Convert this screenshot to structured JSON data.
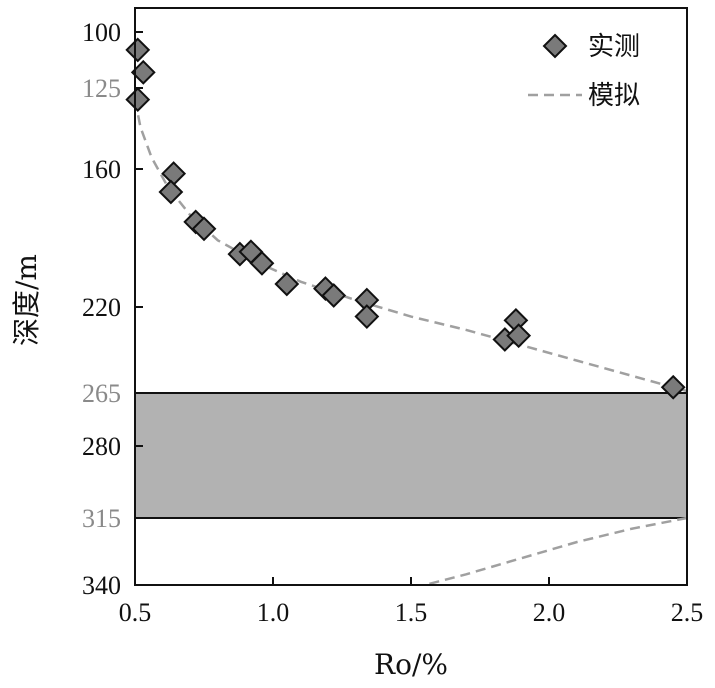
{
  "chart_data": {
    "type": "scatter",
    "xlabel": "Ro/%",
    "ylabel": "深度/m",
    "xlim": [
      0.5,
      2.5
    ],
    "x_ticks": [
      "0.5",
      "1.0",
      "1.5",
      "2.0",
      "2.5"
    ],
    "x_tick_values": [
      0.5,
      1.0,
      1.5,
      2.0,
      2.5
    ],
    "y_ticks": [
      "100",
      "125",
      "160",
      "220",
      "265",
      "280",
      "315",
      "340"
    ],
    "y_ticks_gray": [
      "125",
      "265",
      "315"
    ],
    "y_axis_inverted": true,
    "legend_position": "top-right",
    "shaded_band": {
      "from": "265",
      "to": "315",
      "color": "#b2b2b2"
    },
    "series": [
      {
        "name": "实测",
        "kind": "scatter",
        "marker": "diamond",
        "color": "#7a7a7a",
        "points": [
          {
            "x": 0.51,
            "y": 108
          },
          {
            "x": 0.53,
            "y": 118
          },
          {
            "x": 0.51,
            "y": 130
          },
          {
            "x": 0.64,
            "y": 162
          },
          {
            "x": 0.63,
            "y": 170
          },
          {
            "x": 0.72,
            "y": 183
          },
          {
            "x": 0.75,
            "y": 186
          },
          {
            "x": 0.88,
            "y": 197
          },
          {
            "x": 0.92,
            "y": 196
          },
          {
            "x": 0.96,
            "y": 201
          },
          {
            "x": 1.05,
            "y": 210
          },
          {
            "x": 1.19,
            "y": 212
          },
          {
            "x": 1.22,
            "y": 215
          },
          {
            "x": 1.34,
            "y": 217
          },
          {
            "x": 1.34,
            "y": 225
          },
          {
            "x": 1.84,
            "y": 237
          },
          {
            "x": 1.88,
            "y": 227
          },
          {
            "x": 1.89,
            "y": 235
          },
          {
            "x": 2.45,
            "y": 262
          }
        ]
      },
      {
        "name": "模拟",
        "kind": "line",
        "style": "dashed",
        "color": "#a0a0a0",
        "segments": [
          [
            {
              "x": 0.5,
              "y": 130
            },
            {
              "x": 0.52,
              "y": 142
            },
            {
              "x": 0.56,
              "y": 155
            },
            {
              "x": 0.62,
              "y": 168
            },
            {
              "x": 0.7,
              "y": 180
            },
            {
              "x": 0.8,
              "y": 191
            },
            {
              "x": 0.95,
              "y": 201
            },
            {
              "x": 1.1,
              "y": 209
            },
            {
              "x": 1.3,
              "y": 217
            },
            {
              "x": 1.5,
              "y": 225
            },
            {
              "x": 1.7,
              "y": 232
            },
            {
              "x": 1.9,
              "y": 240
            },
            {
              "x": 2.1,
              "y": 248
            },
            {
              "x": 2.3,
              "y": 256
            },
            {
              "x": 2.5,
              "y": 264
            }
          ],
          [
            {
              "x": 2.5,
              "y": 315
            },
            {
              "x": 2.3,
              "y": 319
            },
            {
              "x": 2.1,
              "y": 324
            },
            {
              "x": 1.9,
              "y": 330
            },
            {
              "x": 1.7,
              "y": 336
            },
            {
              "x": 1.55,
              "y": 340
            }
          ]
        ]
      }
    ]
  }
}
